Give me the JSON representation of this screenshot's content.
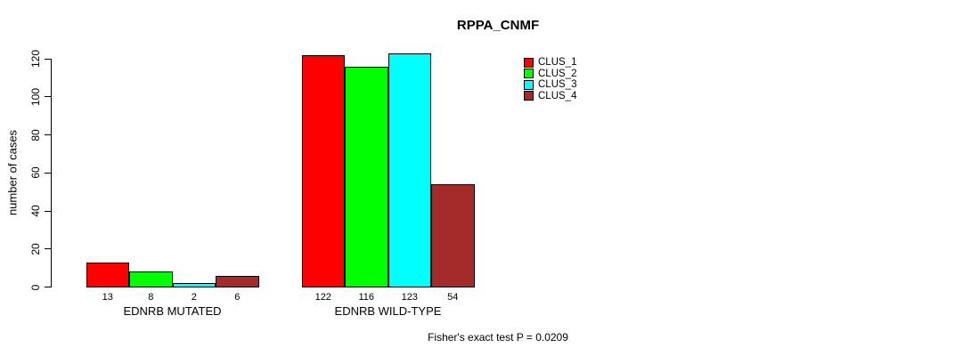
{
  "title": "RPPA_CNMF",
  "footer": "Fisher's exact test P = 0.0209",
  "chart_data": {
    "type": "bar",
    "title": "RPPA_CNMF",
    "categories": [
      "EDNRB MUTATED",
      "EDNRB WILD-TYPE"
    ],
    "series": [
      {
        "name": "CLUS_1",
        "color": "#ff0000",
        "values": [
          13,
          122
        ]
      },
      {
        "name": "CLUS_2",
        "color": "#00ff00",
        "values": [
          8,
          116
        ]
      },
      {
        "name": "CLUS_3",
        "color": "#00ffff",
        "values": [
          2,
          123
        ]
      },
      {
        "name": "CLUS_4",
        "color": "#a52a2a",
        "values": [
          6,
          54
        ]
      }
    ],
    "xlabel": "",
    "ylabel": "number of cases",
    "ylim": [
      0,
      120
    ],
    "yticks": [
      0,
      20,
      40,
      60,
      80,
      100,
      120
    ],
    "bar_value_labels": true,
    "legend_position": "top-right",
    "grid": false,
    "annotation": "Fisher's exact test P = 0.0209"
  }
}
